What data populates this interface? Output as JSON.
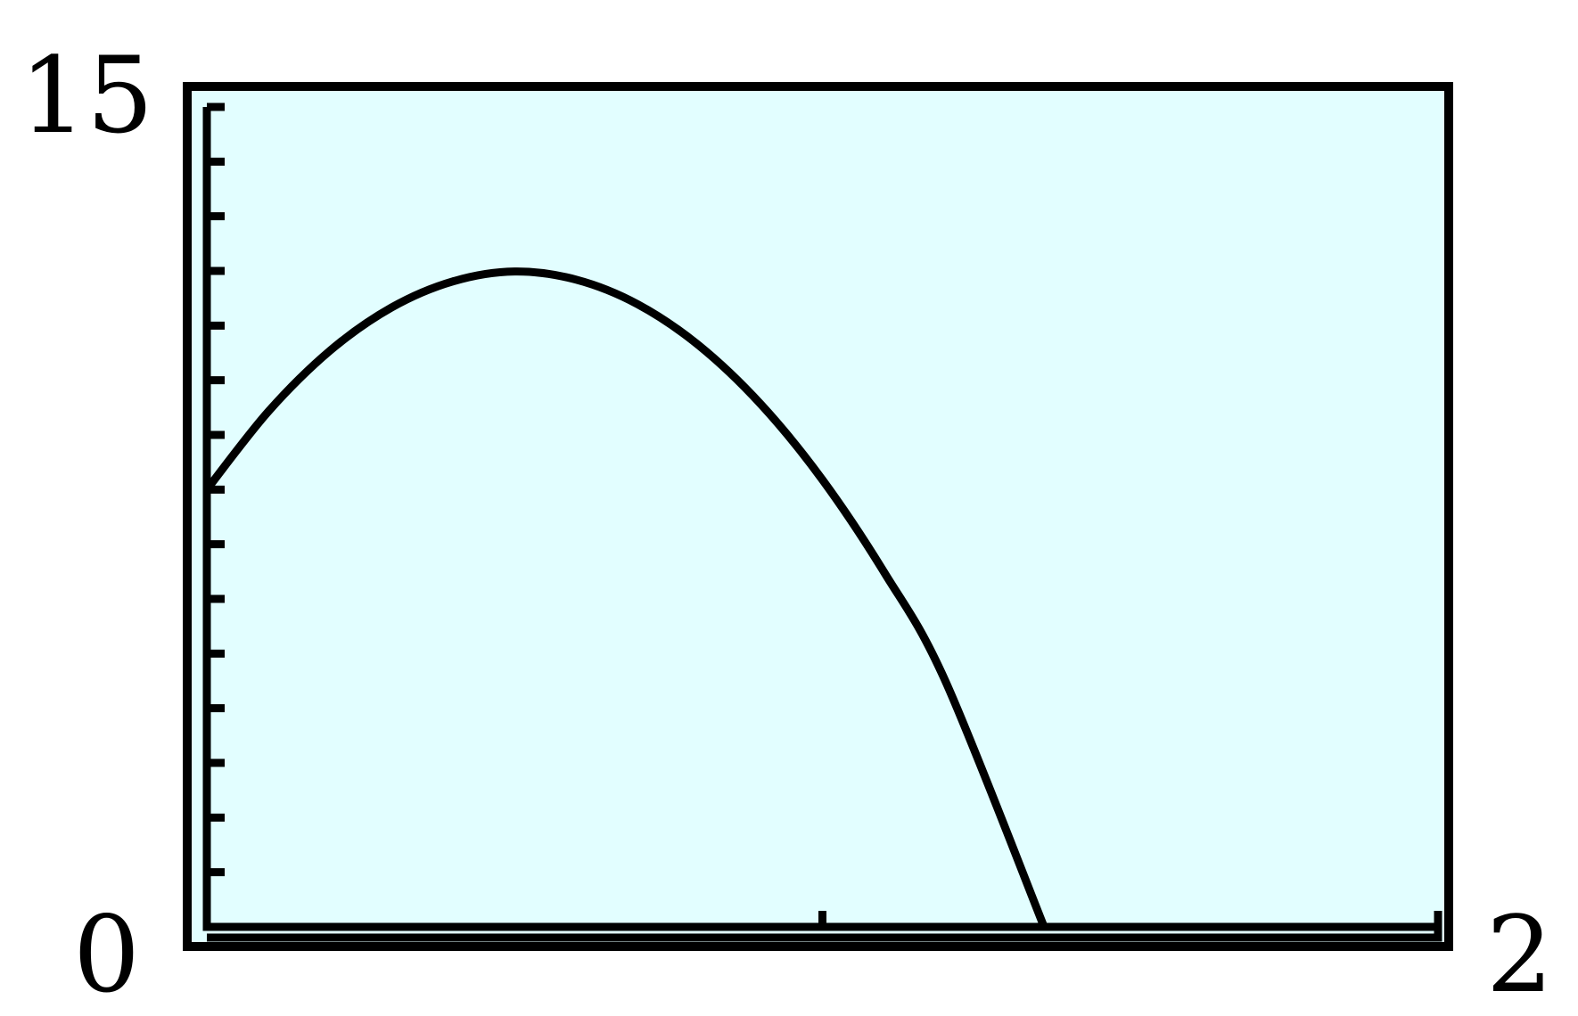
{
  "chart_data": {
    "type": "line",
    "title": "",
    "xlabel": "",
    "ylabel": "",
    "xlim": [
      0,
      2
    ],
    "ylim": [
      0,
      15
    ],
    "x_tick_step": 1,
    "y_tick_step": 1,
    "grid": false,
    "tick_labels": {
      "y_max": "15",
      "origin": "0",
      "x_max": "2"
    },
    "series": [
      {
        "x": [
          0,
          0.1,
          0.2,
          0.3,
          0.4,
          0.5,
          0.6,
          0.7,
          0.8,
          0.9,
          1.0,
          1.1,
          1.2,
          1.36
        ],
        "y": [
          8.0,
          9.43,
          10.54,
          11.33,
          11.81,
          11.99,
          11.84,
          11.39,
          10.63,
          9.56,
          8.18,
          6.49,
          4.49,
          0.0
        ],
        "color": "#000000"
      }
    ],
    "colors": {
      "background": "#e2feff",
      "frame": "#000000",
      "curve": "#000000"
    }
  }
}
